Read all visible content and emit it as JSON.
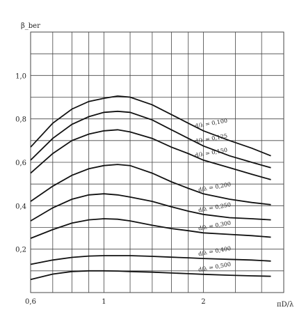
{
  "chart_data": {
    "type": "line",
    "title": "",
    "xlabel": "πD/λ",
    "ylabel": "β_ber",
    "x_scale": "log",
    "xlim": [
      0.6,
      3.5
    ],
    "ylim": [
      0.0,
      1.2
    ],
    "x_tick_labels": [
      "0,6",
      "1",
      "2"
    ],
    "y_tick_labels": [
      "0,2",
      "0,4",
      "0,6",
      "0,8",
      "1,0"
    ],
    "grid": true,
    "series": [
      {
        "name": "d/λ = 0,100",
        "x": [
          0.6,
          0.7,
          0.8,
          0.9,
          1.0,
          1.1,
          1.2,
          1.4,
          1.6,
          1.8,
          2.0,
          2.4,
          2.8,
          3.2
        ],
        "y": [
          0.67,
          0.78,
          0.845,
          0.88,
          0.895,
          0.905,
          0.9,
          0.865,
          0.82,
          0.78,
          0.745,
          0.7,
          0.665,
          0.63
        ]
      },
      {
        "name": "d/λ = 0,125",
        "x": [
          0.6,
          0.7,
          0.8,
          0.9,
          1.0,
          1.1,
          1.2,
          1.4,
          1.6,
          1.8,
          2.0,
          2.4,
          2.8,
          3.2
        ],
        "y": [
          0.61,
          0.71,
          0.775,
          0.81,
          0.83,
          0.835,
          0.83,
          0.795,
          0.75,
          0.71,
          0.675,
          0.63,
          0.6,
          0.575
        ]
      },
      {
        "name": "d/λ = 0,150",
        "x": [
          0.6,
          0.7,
          0.8,
          0.9,
          1.0,
          1.1,
          1.2,
          1.4,
          1.6,
          1.8,
          2.0,
          2.4,
          2.8,
          3.2
        ],
        "y": [
          0.55,
          0.64,
          0.7,
          0.73,
          0.745,
          0.75,
          0.74,
          0.71,
          0.67,
          0.64,
          0.61,
          0.575,
          0.545,
          0.52
        ]
      },
      {
        "name": "d/λ = 0,200",
        "x": [
          0.6,
          0.7,
          0.8,
          0.9,
          1.0,
          1.1,
          1.2,
          1.4,
          1.6,
          1.8,
          2.0,
          2.4,
          2.8,
          3.2
        ],
        "y": [
          0.42,
          0.49,
          0.54,
          0.57,
          0.585,
          0.59,
          0.585,
          0.55,
          0.51,
          0.48,
          0.455,
          0.43,
          0.415,
          0.405
        ]
      },
      {
        "name": "d/λ = 0,250",
        "x": [
          0.6,
          0.7,
          0.8,
          0.9,
          1.0,
          1.1,
          1.2,
          1.4,
          1.6,
          1.8,
          2.0,
          2.4,
          2.8,
          3.2
        ],
        "y": [
          0.33,
          0.39,
          0.43,
          0.45,
          0.455,
          0.45,
          0.44,
          0.42,
          0.395,
          0.375,
          0.36,
          0.345,
          0.34,
          0.335
        ]
      },
      {
        "name": "d/λ = 0,300",
        "x": [
          0.6,
          0.7,
          0.8,
          0.9,
          1.0,
          1.1,
          1.2,
          1.4,
          1.6,
          1.8,
          2.0,
          2.4,
          2.8,
          3.2
        ],
        "y": [
          0.25,
          0.29,
          0.32,
          0.335,
          0.34,
          0.338,
          0.33,
          0.31,
          0.295,
          0.285,
          0.275,
          0.268,
          0.262,
          0.255
        ]
      },
      {
        "name": "d/λ = 0,400",
        "x": [
          0.6,
          0.7,
          0.8,
          0.9,
          1.0,
          1.1,
          1.2,
          1.4,
          1.6,
          1.8,
          2.0,
          2.4,
          2.8,
          3.2
        ],
        "y": [
          0.13,
          0.15,
          0.162,
          0.168,
          0.17,
          0.17,
          0.17,
          0.167,
          0.163,
          0.16,
          0.157,
          0.153,
          0.15,
          0.145
        ]
      },
      {
        "name": "d/λ = 0,500",
        "x": [
          0.6,
          0.7,
          0.8,
          0.9,
          1.0,
          1.1,
          1.2,
          1.4,
          1.6,
          1.8,
          2.0,
          2.4,
          2.8,
          3.2
        ],
        "y": [
          0.06,
          0.085,
          0.097,
          0.1,
          0.1,
          0.099,
          0.097,
          0.094,
          0.09,
          0.087,
          0.084,
          0.08,
          0.077,
          0.075
        ]
      }
    ]
  }
}
